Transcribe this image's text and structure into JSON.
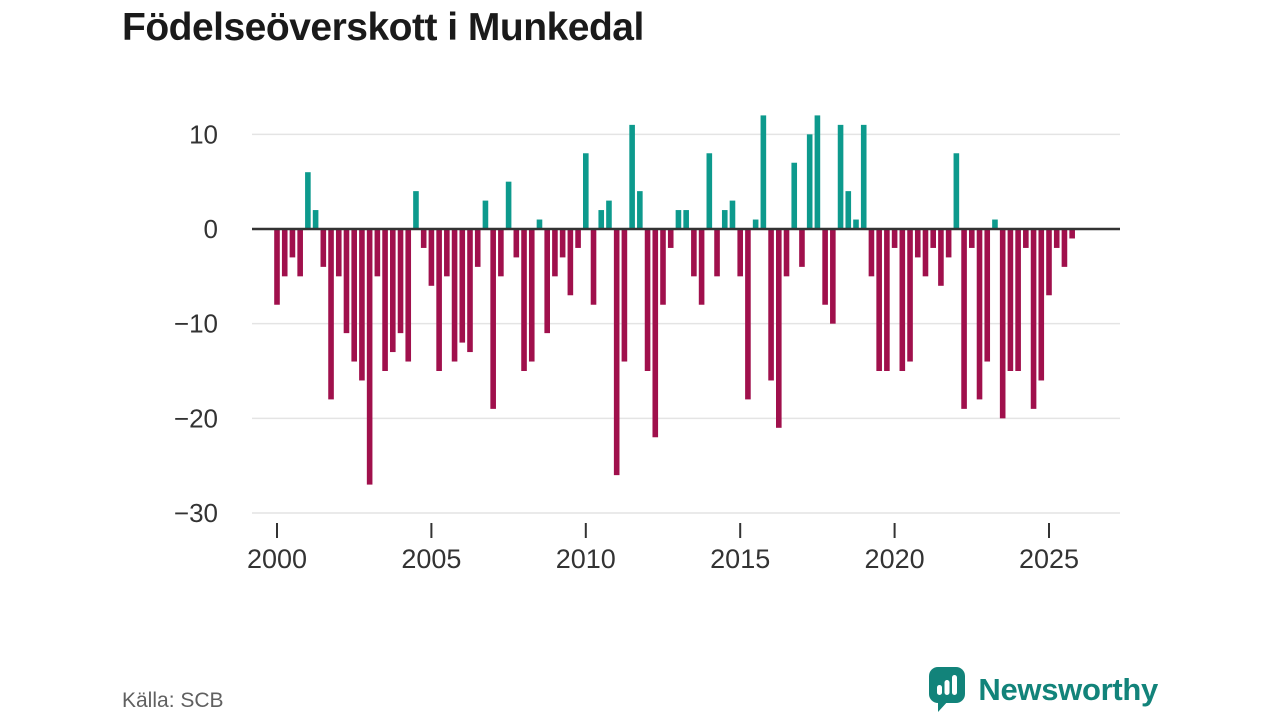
{
  "title": "Födelseöverskott i Munkedal",
  "source": "Källa: SCB",
  "branding": {
    "name": "Newsworthy"
  },
  "colors": {
    "positive": "#0d9a8d",
    "negative": "#a0104c",
    "zero_line": "#333333",
    "grid": "#e4e4e4",
    "axis_text": "#333333",
    "title_text": "#1a1a1a",
    "source_text": "#606060",
    "brand": "#12837a"
  },
  "chart_data": {
    "type": "bar",
    "title": "Födelseöverskott i Munkedal",
    "x_unit": "quarter",
    "start": "2000-Q1",
    "end": "2025-Q4",
    "frequency": "quarterly",
    "values": [
      -8,
      -5,
      -3,
      -5,
      6,
      2,
      -4,
      -18,
      -5,
      -11,
      -14,
      -16,
      -27,
      -5,
      -15,
      -13,
      -11,
      -14,
      4,
      -2,
      -6,
      -15,
      -5,
      -14,
      -12,
      -13,
      -4,
      3,
      -19,
      -5,
      5,
      -3,
      -15,
      -14,
      1,
      -11,
      -5,
      -3,
      -7,
      -2,
      8,
      -8,
      2,
      3,
      -26,
      -14,
      11,
      4,
      -15,
      -22,
      -8,
      -2,
      2,
      2,
      -5,
      -8,
      8,
      -5,
      2,
      3,
      -5,
      -18,
      1,
      12,
      -16,
      -21,
      -5,
      7,
      -4,
      10,
      12,
      -8,
      -10,
      11,
      4,
      1,
      11,
      -5,
      -15,
      -15,
      -2,
      -15,
      -14,
      -3,
      -5,
      -2,
      -6,
      -3,
      8,
      -19,
      -2,
      -18,
      -14,
      1,
      -20,
      -15,
      -15,
      -2,
      -19,
      -16,
      -7,
      -2,
      -4,
      -1
    ],
    "yticks": [
      10,
      0,
      -10,
      -20,
      -30
    ],
    "xticks": [
      2000,
      2005,
      2010,
      2015,
      2020,
      2025
    ],
    "ylim": [
      -30,
      13
    ],
    "grid": true,
    "legend": false,
    "xlabel": "",
    "ylabel": ""
  }
}
